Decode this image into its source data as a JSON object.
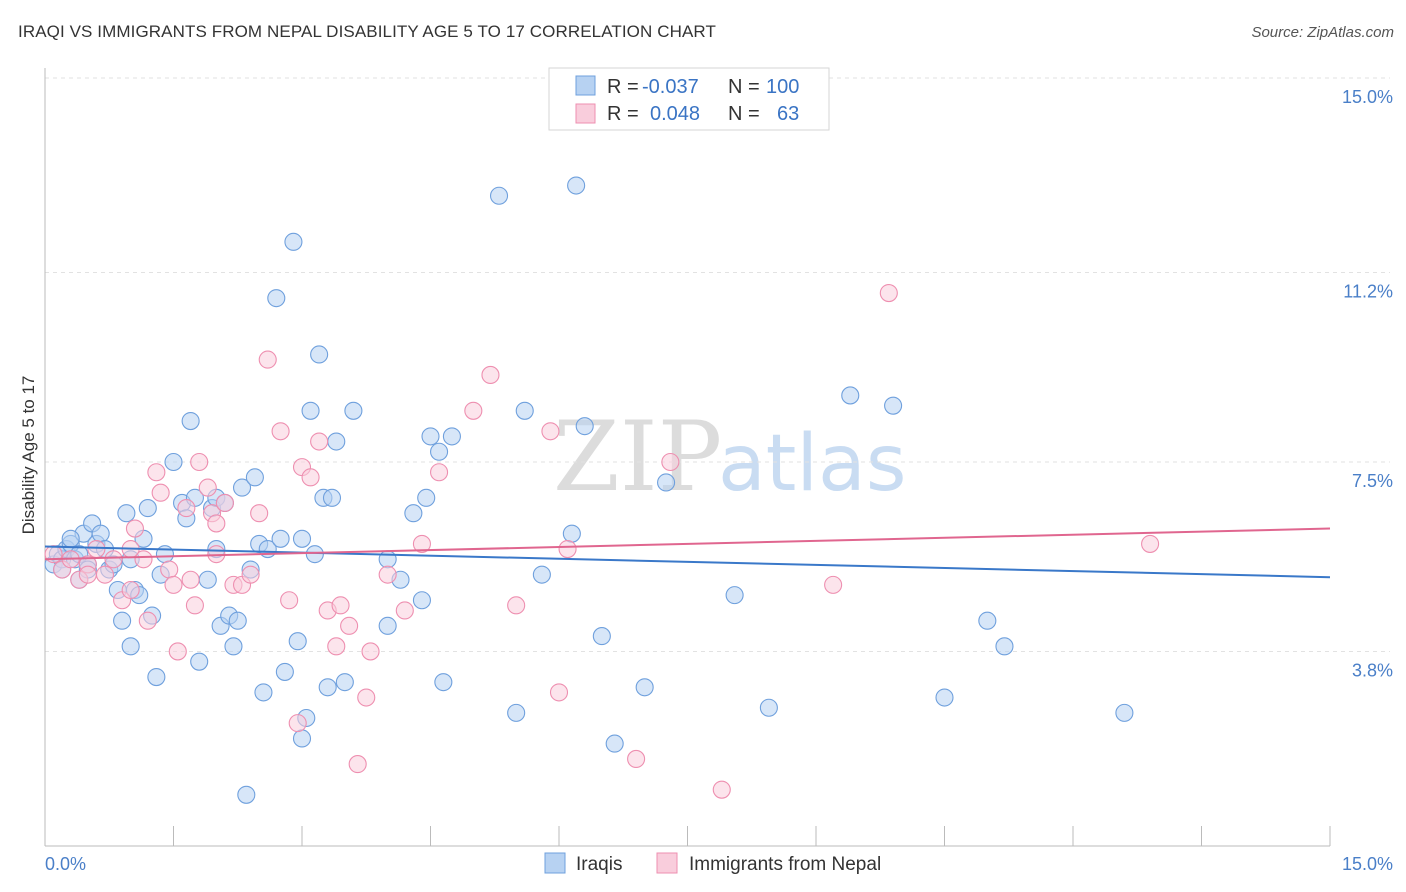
{
  "title": "IRAQI VS IMMIGRANTS FROM NEPAL DISABILITY AGE 5 TO 17 CORRELATION CHART",
  "source": "Source: ZipAtlas.com",
  "watermark": {
    "zip": "ZIP",
    "atlas": "atlas"
  },
  "legend_top": {
    "rows": [
      {
        "r_label": "R =",
        "r_value": "-0.037",
        "n_label": "N =",
        "n_value": "100",
        "color": "#9dc3ee"
      },
      {
        "r_label": "R =",
        "r_value": "0.048",
        "n_label": "N =",
        "n_value": "63",
        "color": "#f5b8cd"
      }
    ]
  },
  "legend_bottom": {
    "iraqis": "Iraqis",
    "nepal": "Immigrants from Nepal"
  },
  "chart_data": {
    "type": "scatter",
    "title": "IRAQI VS IMMIGRANTS FROM NEPAL DISABILITY AGE 5 TO 17 CORRELATION CHART",
    "xlabel": "",
    "ylabel": "Disability Age 5 to 17",
    "xlim": [
      0,
      15
    ],
    "ylim": [
      0,
      15
    ],
    "x_tick_labels": [
      "0.0%",
      "15.0%"
    ],
    "y_tick_labels": [
      "3.8%",
      "7.5%",
      "11.2%",
      "15.0%"
    ],
    "y_ticks": [
      3.8,
      7.5,
      11.2,
      15.0
    ],
    "grid": true,
    "legend_placement": "top-center",
    "series": [
      {
        "name": "Iraqis",
        "color": "#6fa0dd",
        "fill": "#b7d2f2",
        "trend": {
          "x": [
            0,
            15
          ],
          "y": [
            5.85,
            5.25
          ],
          "color": "#3a78c9"
        },
        "points": [
          [
            0.1,
            5.5
          ],
          [
            0.15,
            5.7
          ],
          [
            0.2,
            5.6
          ],
          [
            0.25,
            5.8
          ],
          [
            0.3,
            5.9
          ],
          [
            0.35,
            5.6
          ],
          [
            0.4,
            5.7
          ],
          [
            0.45,
            6.1
          ],
          [
            0.5,
            5.5
          ],
          [
            0.55,
            6.3
          ],
          [
            0.6,
            5.9
          ],
          [
            0.65,
            6.1
          ],
          [
            0.7,
            5.8
          ],
          [
            0.75,
            5.4
          ],
          [
            0.8,
            5.5
          ],
          [
            0.85,
            5.0
          ],
          [
            0.9,
            4.4
          ],
          [
            0.95,
            6.5
          ],
          [
            1.0,
            3.9
          ],
          [
            1.05,
            5.0
          ],
          [
            1.1,
            4.9
          ],
          [
            1.15,
            6.0
          ],
          [
            1.2,
            6.6
          ],
          [
            1.25,
            4.5
          ],
          [
            1.3,
            3.3
          ],
          [
            1.35,
            5.3
          ],
          [
            1.4,
            5.7
          ],
          [
            1.5,
            7.5
          ],
          [
            1.6,
            6.7
          ],
          [
            1.65,
            6.4
          ],
          [
            1.7,
            8.3
          ],
          [
            1.75,
            6.8
          ],
          [
            1.8,
            3.6
          ],
          [
            1.9,
            5.2
          ],
          [
            1.95,
            6.6
          ],
          [
            2.0,
            6.8
          ],
          [
            2.05,
            4.3
          ],
          [
            2.1,
            6.7
          ],
          [
            2.15,
            4.5
          ],
          [
            2.2,
            3.9
          ],
          [
            2.25,
            4.4
          ],
          [
            2.3,
            7.0
          ],
          [
            2.35,
            1.0
          ],
          [
            2.4,
            5.4
          ],
          [
            2.45,
            7.2
          ],
          [
            2.5,
            5.9
          ],
          [
            2.55,
            3.0
          ],
          [
            2.6,
            5.8
          ],
          [
            2.7,
            10.7
          ],
          [
            2.75,
            6.0
          ],
          [
            2.8,
            3.4
          ],
          [
            2.9,
            11.8
          ],
          [
            2.95,
            4.0
          ],
          [
            3.0,
            2.1
          ],
          [
            3.05,
            2.5
          ],
          [
            3.1,
            8.5
          ],
          [
            3.15,
            5.7
          ],
          [
            3.2,
            9.6
          ],
          [
            3.25,
            6.8
          ],
          [
            3.3,
            3.1
          ],
          [
            3.35,
            6.8
          ],
          [
            3.4,
            7.9
          ],
          [
            3.5,
            3.2
          ],
          [
            3.6,
            8.5
          ],
          [
            4.0,
            4.3
          ],
          [
            4.15,
            5.2
          ],
          [
            4.3,
            6.5
          ],
          [
            4.4,
            4.8
          ],
          [
            4.45,
            6.8
          ],
          [
            4.5,
            8.0
          ],
          [
            4.6,
            7.7
          ],
          [
            4.65,
            3.2
          ],
          [
            4.75,
            8.0
          ],
          [
            5.3,
            12.7
          ],
          [
            5.5,
            2.6
          ],
          [
            5.6,
            8.5
          ],
          [
            5.8,
            5.3
          ],
          [
            6.15,
            6.1
          ],
          [
            6.2,
            12.9
          ],
          [
            6.3,
            8.2
          ],
          [
            6.5,
            4.1
          ],
          [
            6.65,
            2.0
          ],
          [
            7.0,
            3.1
          ],
          [
            7.25,
            7.1
          ],
          [
            8.05,
            4.9
          ],
          [
            8.45,
            2.7
          ],
          [
            9.4,
            8.8
          ],
          [
            9.9,
            8.6
          ],
          [
            10.5,
            2.9
          ],
          [
            11.0,
            4.4
          ],
          [
            11.2,
            3.9
          ],
          [
            12.6,
            2.6
          ],
          [
            0.2,
            5.4
          ],
          [
            0.3,
            6.0
          ],
          [
            0.4,
            5.2
          ],
          [
            0.5,
            5.4
          ],
          [
            1.0,
            5.6
          ],
          [
            2.0,
            5.8
          ],
          [
            3.0,
            6.0
          ],
          [
            4.0,
            5.6
          ]
        ]
      },
      {
        "name": "Immigrants from Nepal",
        "color": "#ee8fb0",
        "fill": "#f9cddc",
        "trend": {
          "x": [
            0,
            15
          ],
          "y": [
            5.6,
            6.2
          ],
          "color": "#e0668f"
        },
        "points": [
          [
            0.1,
            5.7
          ],
          [
            0.2,
            5.4
          ],
          [
            0.3,
            5.6
          ],
          [
            0.4,
            5.2
          ],
          [
            0.5,
            5.5
          ],
          [
            0.6,
            5.8
          ],
          [
            0.7,
            5.3
          ],
          [
            0.8,
            5.6
          ],
          [
            0.9,
            4.8
          ],
          [
            1.0,
            5.0
          ],
          [
            1.05,
            6.2
          ],
          [
            1.15,
            5.6
          ],
          [
            1.2,
            4.4
          ],
          [
            1.3,
            7.3
          ],
          [
            1.35,
            6.9
          ],
          [
            1.45,
            5.4
          ],
          [
            1.5,
            5.1
          ],
          [
            1.55,
            3.8
          ],
          [
            1.65,
            6.6
          ],
          [
            1.7,
            5.2
          ],
          [
            1.75,
            4.7
          ],
          [
            1.8,
            7.5
          ],
          [
            1.9,
            7.0
          ],
          [
            1.95,
            6.5
          ],
          [
            2.0,
            6.3
          ],
          [
            2.1,
            6.7
          ],
          [
            2.2,
            5.1
          ],
          [
            2.3,
            5.1
          ],
          [
            2.4,
            5.3
          ],
          [
            2.5,
            6.5
          ],
          [
            2.6,
            9.5
          ],
          [
            2.75,
            8.1
          ],
          [
            2.85,
            4.8
          ],
          [
            2.95,
            2.4
          ],
          [
            3.0,
            7.4
          ],
          [
            3.1,
            7.2
          ],
          [
            3.2,
            7.9
          ],
          [
            3.3,
            4.6
          ],
          [
            3.4,
            3.9
          ],
          [
            3.45,
            4.7
          ],
          [
            3.55,
            4.3
          ],
          [
            3.65,
            1.6
          ],
          [
            3.75,
            2.9
          ],
          [
            3.8,
            3.8
          ],
          [
            4.0,
            5.3
          ],
          [
            4.2,
            4.6
          ],
          [
            4.4,
            5.9
          ],
          [
            4.6,
            7.3
          ],
          [
            5.0,
            8.5
          ],
          [
            5.2,
            9.2
          ],
          [
            5.5,
            4.7
          ],
          [
            5.9,
            8.1
          ],
          [
            6.0,
            3.0
          ],
          [
            6.1,
            5.8
          ],
          [
            6.9,
            1.7
          ],
          [
            7.3,
            7.5
          ],
          [
            7.9,
            1.1
          ],
          [
            9.2,
            5.1
          ],
          [
            9.85,
            10.8
          ],
          [
            12.9,
            5.9
          ],
          [
            0.5,
            5.3
          ],
          [
            1.0,
            5.8
          ],
          [
            2.0,
            5.7
          ]
        ]
      }
    ]
  }
}
